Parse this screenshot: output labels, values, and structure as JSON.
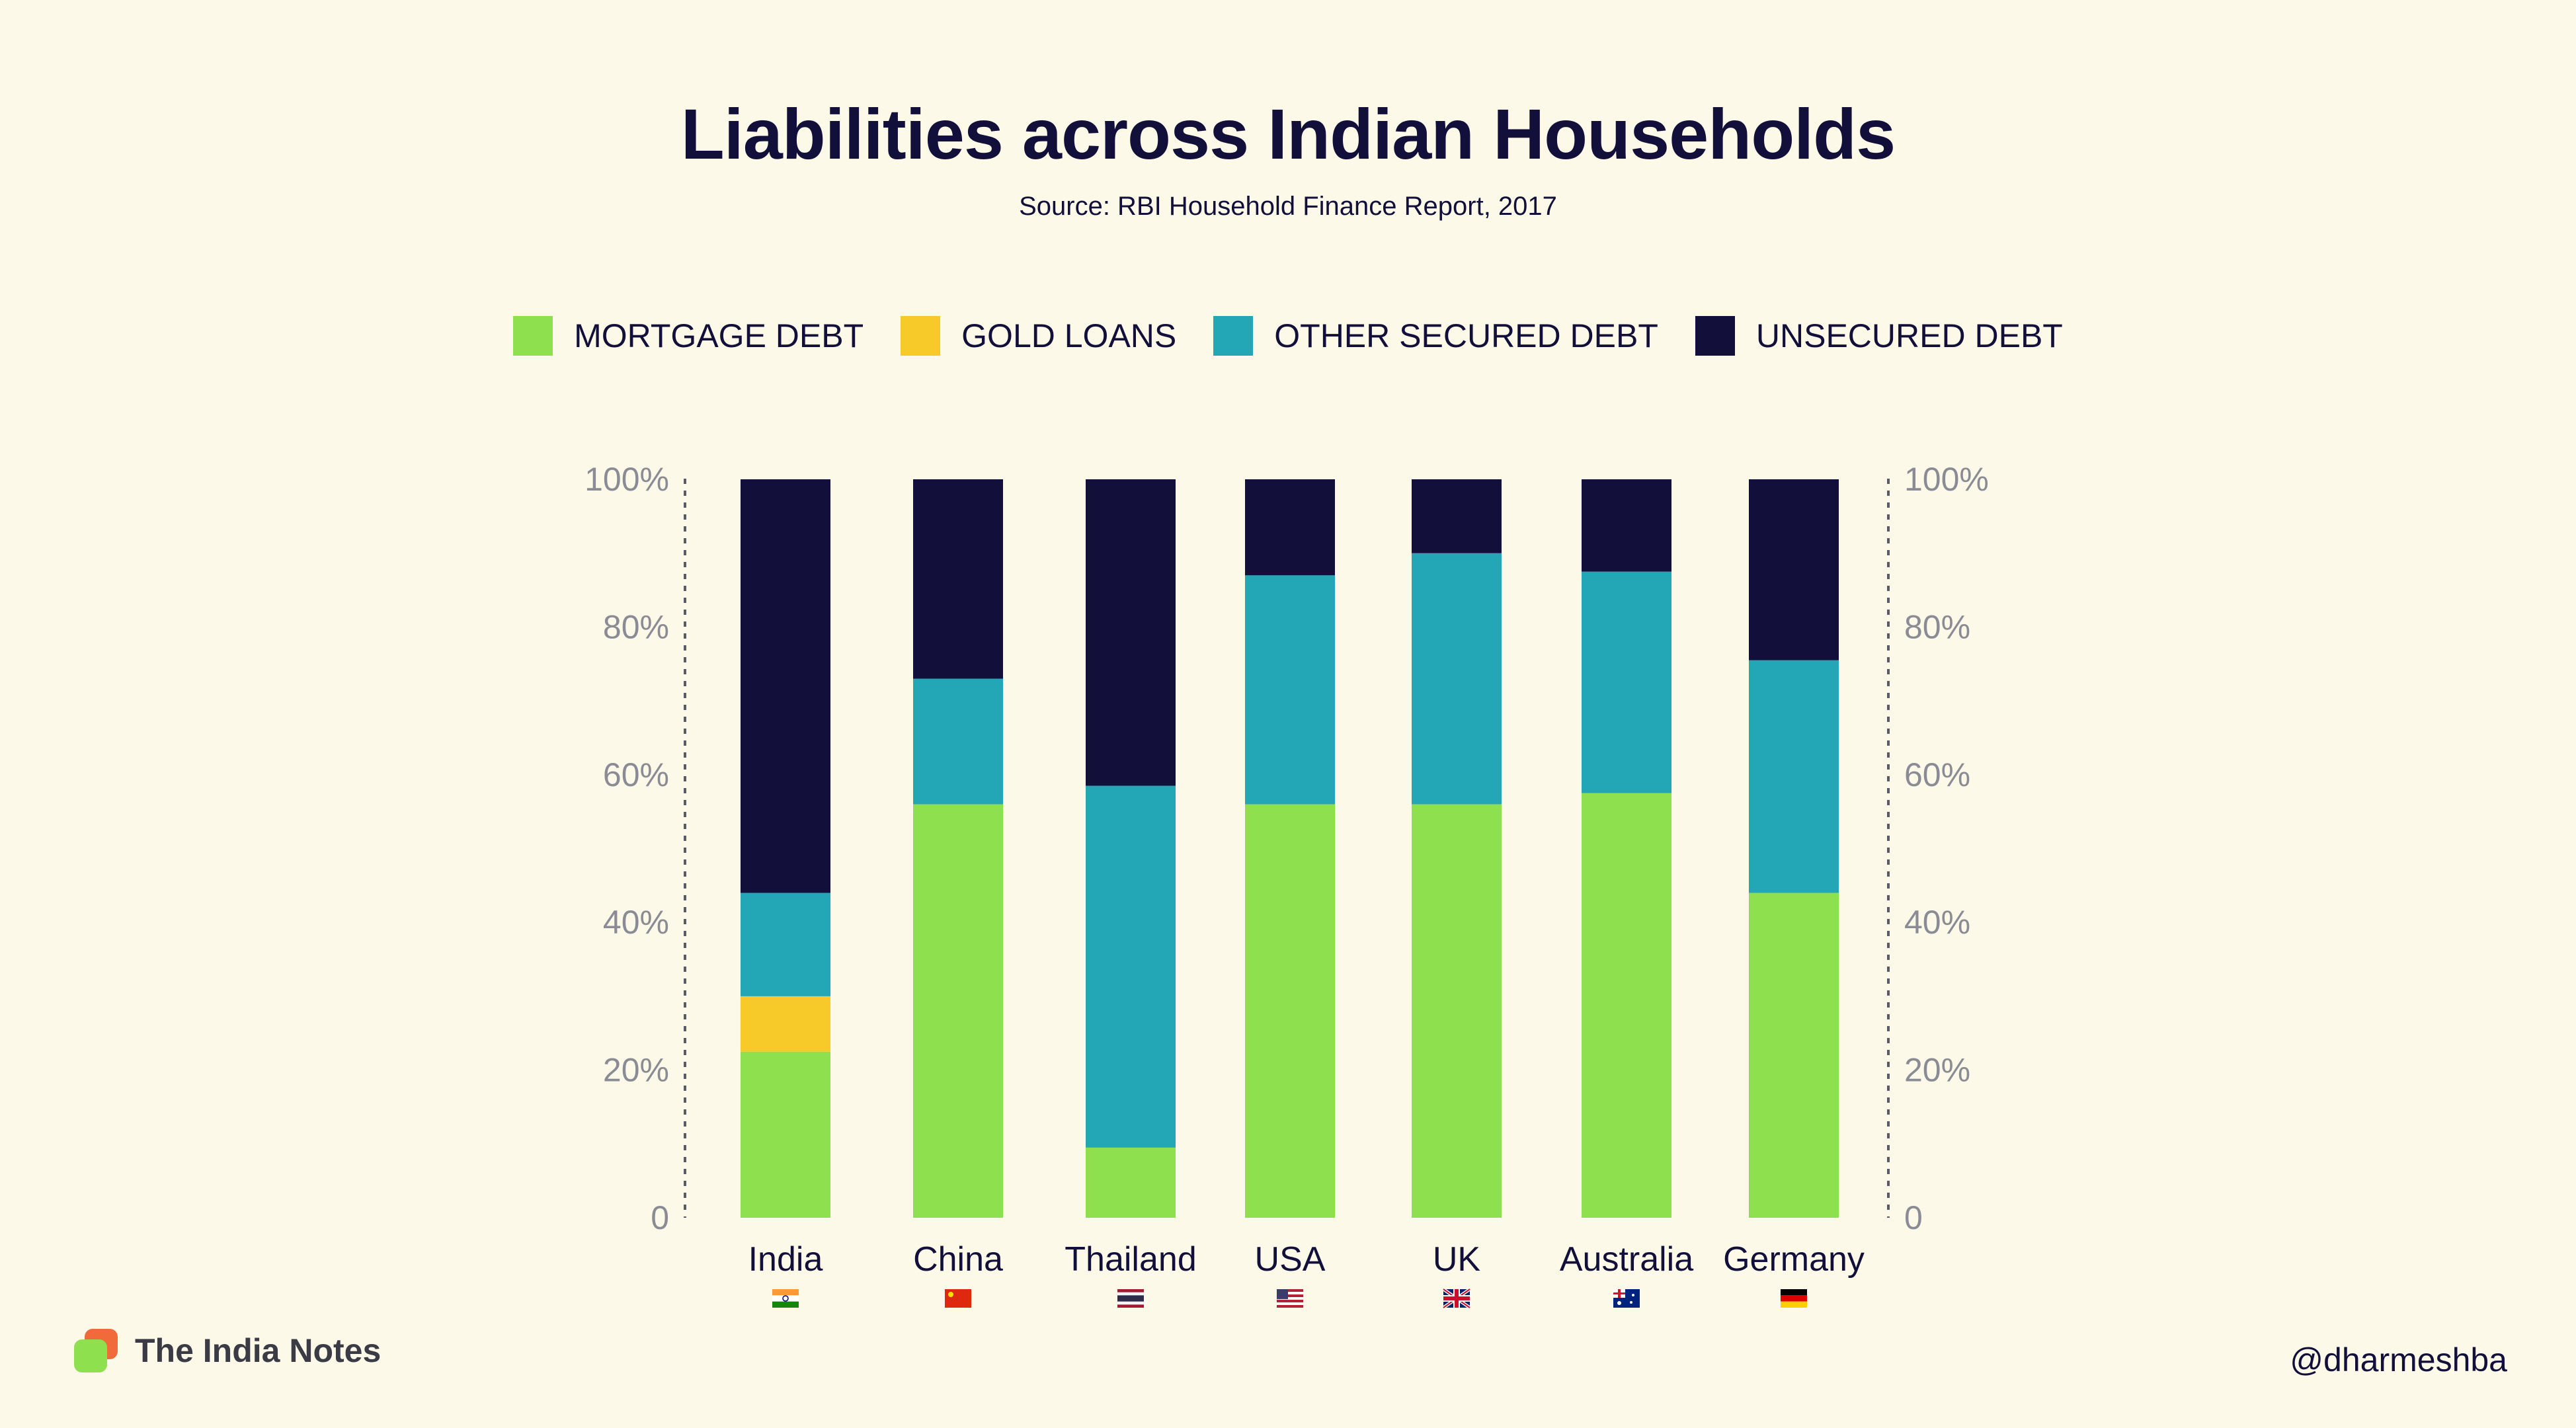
{
  "header": {
    "title": "Liabilities across Indian Households",
    "subtitle": "Source: RBI Household Finance Report, 2017"
  },
  "legend": [
    {
      "label": "MORTGAGE DEBT",
      "color": "#8ee04f"
    },
    {
      "label": "GOLD LOANS",
      "color": "#f7ca2a"
    },
    {
      "label": "OTHER SECURED DEBT",
      "color": "#23a6b5"
    },
    {
      "label": "UNSECURED DEBT",
      "color": "#12103a"
    }
  ],
  "chart_data": {
    "type": "bar",
    "stacked": true,
    "categories": [
      "India",
      "China",
      "Thailand",
      "USA",
      "UK",
      "Australia",
      "Germany"
    ],
    "country_flags": [
      "in-flag-icon",
      "cn-flag-icon",
      "th-flag-icon",
      "us-flag-icon",
      "gb-flag-icon",
      "au-flag-icon",
      "de-flag-icon"
    ],
    "series": [
      {
        "name": "MORTGAGE DEBT",
        "color": "#8ee04f",
        "values": [
          22.5,
          56,
          9.5,
          56,
          56,
          57.5,
          44
        ]
      },
      {
        "name": "GOLD LOANS",
        "color": "#f7ca2a",
        "values": [
          7.5,
          0,
          0,
          0,
          0,
          0,
          0
        ]
      },
      {
        "name": "OTHER SECURED DEBT",
        "color": "#23a6b5",
        "values": [
          14,
          17,
          49,
          31,
          34,
          30,
          31.5
        ]
      },
      {
        "name": "UNSECURED DEBT",
        "color": "#12103a",
        "values": [
          56,
          27,
          41.5,
          13,
          10,
          12.5,
          24.5
        ]
      }
    ],
    "yticks": [
      "0",
      "20%",
      "40%",
      "60%",
      "80%",
      "100%"
    ],
    "ylim": [
      0,
      100
    ],
    "legend_position": "top-center",
    "grid": false
  },
  "footer": {
    "brand": "The India Notes",
    "handle": "@dharmeshba",
    "brand_icon": "india-notes-logo-icon"
  }
}
